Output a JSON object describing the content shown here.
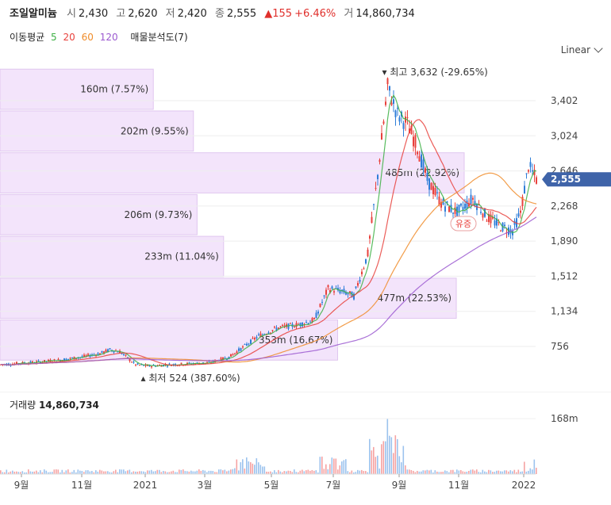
{
  "header": {
    "name": "조일알미늄",
    "open_label": "시",
    "open": "2,430",
    "high_label": "고",
    "high": "2,620",
    "low_label": "저",
    "low": "2,420",
    "close_label": "종",
    "close": "2,555",
    "change": "▲155",
    "change_pct": "+6.46%",
    "volume_label": "거",
    "volume": "14,860,734"
  },
  "moving_average": {
    "label": "이동평균",
    "periods": [
      {
        "value": "5",
        "color": "#3cb043"
      },
      {
        "value": "20",
        "color": "#e8413c"
      },
      {
        "value": "60",
        "color": "#f08c2a"
      },
      {
        "value": "120",
        "color": "#9b59d0"
      }
    ],
    "distribution_label": "매물분석도(7)"
  },
  "scale_mode": "Linear",
  "chart_data": {
    "type": "candlestick",
    "y_ticks": [
      "3,402",
      "3,024",
      "2,646",
      "2,268",
      "1,890",
      "1,512",
      "1,134",
      "756"
    ],
    "y_tick_values": [
      3402,
      3024,
      2646,
      2268,
      1890,
      1512,
      1134,
      756
    ],
    "x_ticks": [
      "9월",
      "11월",
      "2021",
      "3월",
      "5월",
      "7월",
      "9월",
      "11월",
      "2022"
    ],
    "current_price": "2,555",
    "current_value": 2555,
    "max_label": "최고 3,632 (-29.65%)",
    "min_label": "최저 524 (387.60%)",
    "max_value": 3632,
    "min_value": 524,
    "annotation": "유증",
    "price_band_color": "#f3e4fb",
    "volume_profile": [
      {
        "label": "160m (7.57%)",
        "from": 3300,
        "to": 3750,
        "share": 7.57
      },
      {
        "label": "202m (9.55%)",
        "from": 2850,
        "to": 3300,
        "share": 9.55
      },
      {
        "label": "485m (22.92%)",
        "from": 2400,
        "to": 2850,
        "share": 22.92
      },
      {
        "label": "206m (9.73%)",
        "from": 1950,
        "to": 2400,
        "share": 9.73
      },
      {
        "label": "233m (11.04%)",
        "from": 1500,
        "to": 1950,
        "share": 11.04
      },
      {
        "label": "477m (22.53%)",
        "from": 1050,
        "to": 1500,
        "share": 22.53
      },
      {
        "label": "353m (16.67%)",
        "from": 600,
        "to": 1050,
        "share": 16.67
      }
    ],
    "close_series": [
      {
        "x": 0,
        "y": 560
      },
      {
        "x": 10,
        "y": 575
      },
      {
        "x": 20,
        "y": 590
      },
      {
        "x": 30,
        "y": 610
      },
      {
        "x": 40,
        "y": 640
      },
      {
        "x": 50,
        "y": 680
      },
      {
        "x": 55,
        "y": 720
      },
      {
        "x": 60,
        "y": 700
      },
      {
        "x": 68,
        "y": 560
      },
      {
        "x": 75,
        "y": 545
      },
      {
        "x": 85,
        "y": 560
      },
      {
        "x": 95,
        "y": 570
      },
      {
        "x": 105,
        "y": 580
      },
      {
        "x": 115,
        "y": 640
      },
      {
        "x": 123,
        "y": 760
      },
      {
        "x": 130,
        "y": 870
      },
      {
        "x": 140,
        "y": 960
      },
      {
        "x": 150,
        "y": 990
      },
      {
        "x": 158,
        "y": 1040
      },
      {
        "x": 165,
        "y": 1380
      },
      {
        "x": 172,
        "y": 1350
      },
      {
        "x": 178,
        "y": 1300
      },
      {
        "x": 185,
        "y": 1750
      },
      {
        "x": 190,
        "y": 2600
      },
      {
        "x": 195,
        "y": 3550
      },
      {
        "x": 200,
        "y": 3250
      },
      {
        "x": 205,
        "y": 3150
      },
      {
        "x": 210,
        "y": 2900
      },
      {
        "x": 215,
        "y": 2550
      },
      {
        "x": 222,
        "y": 2300
      },
      {
        "x": 230,
        "y": 2200
      },
      {
        "x": 238,
        "y": 2350
      },
      {
        "x": 245,
        "y": 2150
      },
      {
        "x": 252,
        "y": 2050
      },
      {
        "x": 258,
        "y": 2000
      },
      {
        "x": 262,
        "y": 2200
      },
      {
        "x": 266,
        "y": 2700
      },
      {
        "x": 270,
        "y": 2555
      }
    ],
    "volume_label": "거래량",
    "volume_value": "14,860,734",
    "volume_y_tick": "168m",
    "volume_y_tick_value": 168
  }
}
